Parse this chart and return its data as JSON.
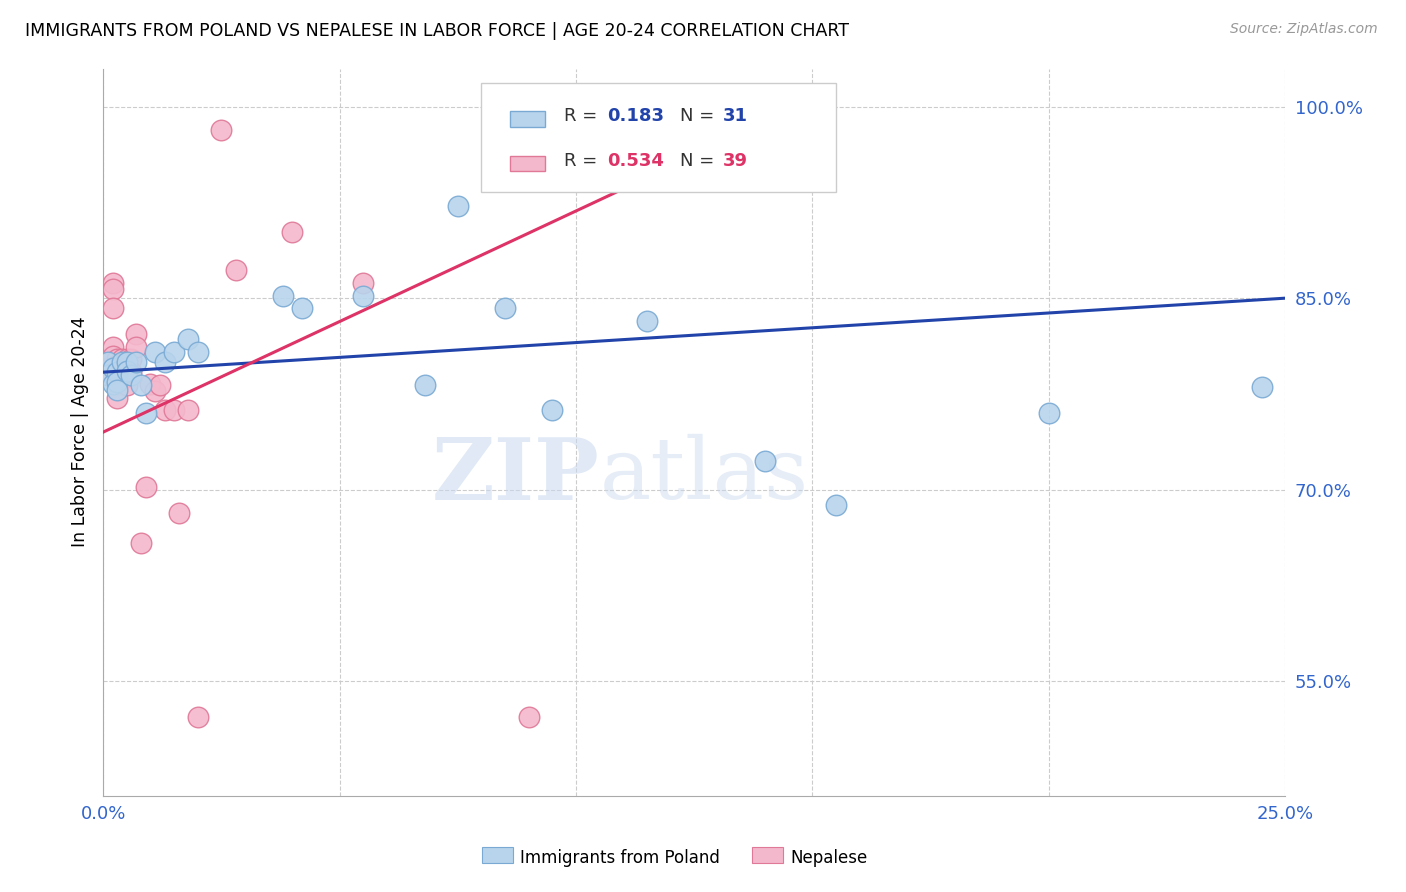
{
  "title": "IMMIGRANTS FROM POLAND VS NEPALESE IN LABOR FORCE | AGE 20-24 CORRELATION CHART",
  "source": "Source: ZipAtlas.com",
  "ylabel": "In Labor Force | Age 20-24",
  "x_min": 0.0,
  "x_max": 0.25,
  "y_min": 0.46,
  "y_max": 1.03,
  "x_ticks": [
    0.0,
    0.05,
    0.1,
    0.15,
    0.2,
    0.25
  ],
  "x_tick_labels": [
    "0.0%",
    "",
    "",
    "",
    "",
    "25.0%"
  ],
  "y_ticks": [
    0.55,
    0.7,
    0.85,
    1.0
  ],
  "y_tick_labels": [
    "55.0%",
    "70.0%",
    "85.0%",
    "100.0%"
  ],
  "poland_color": "#b8d4ec",
  "poland_edge_color": "#7aaad4",
  "nepalese_color": "#f4b8cc",
  "nepalese_edge_color": "#e07898",
  "poland_line_color": "#2244aa",
  "nepalese_line_color": "#dd3366",
  "legend_poland_R": "0.183",
  "legend_poland_N": "31",
  "legend_nepalese_R": "0.534",
  "legend_nepalese_N": "39",
  "legend_label_poland": "Immigrants from Poland",
  "legend_label_nepalese": "Nepalese",
  "watermark_zip": "ZIP",
  "watermark_atlas": "atlas",
  "poland_scatter_x": [
    0.001,
    0.001,
    0.002,
    0.002,
    0.003,
    0.003,
    0.003,
    0.004,
    0.005,
    0.005,
    0.006,
    0.007,
    0.008,
    0.009,
    0.011,
    0.013,
    0.015,
    0.018,
    0.02,
    0.038,
    0.042,
    0.055,
    0.068,
    0.075,
    0.085,
    0.095,
    0.115,
    0.14,
    0.155,
    0.2,
    0.245
  ],
  "poland_scatter_y": [
    0.8,
    0.79,
    0.795,
    0.783,
    0.792,
    0.784,
    0.778,
    0.8,
    0.8,
    0.793,
    0.79,
    0.8,
    0.782,
    0.76,
    0.808,
    0.8,
    0.808,
    0.818,
    0.808,
    0.852,
    0.842,
    0.852,
    0.782,
    0.922,
    0.842,
    0.762,
    0.832,
    0.722,
    0.688,
    0.76,
    0.78
  ],
  "nepalese_scatter_x": [
    0.001,
    0.001,
    0.001,
    0.001,
    0.002,
    0.002,
    0.002,
    0.002,
    0.002,
    0.003,
    0.003,
    0.003,
    0.003,
    0.003,
    0.004,
    0.004,
    0.004,
    0.005,
    0.005,
    0.005,
    0.006,
    0.006,
    0.007,
    0.007,
    0.008,
    0.009,
    0.01,
    0.011,
    0.012,
    0.013,
    0.015,
    0.016,
    0.018,
    0.02,
    0.025,
    0.028,
    0.04,
    0.055,
    0.09
  ],
  "nepalese_scatter_y": [
    0.8,
    0.8,
    0.795,
    0.79,
    0.862,
    0.857,
    0.842,
    0.812,
    0.805,
    0.802,
    0.798,
    0.792,
    0.782,
    0.772,
    0.802,
    0.797,
    0.787,
    0.802,
    0.797,
    0.782,
    0.802,
    0.792,
    0.822,
    0.812,
    0.658,
    0.702,
    0.783,
    0.777,
    0.782,
    0.762,
    0.762,
    0.682,
    0.762,
    0.522,
    0.982,
    0.872,
    0.902,
    0.862,
    0.522
  ],
  "poland_line_x0": 0.0,
  "poland_line_x1": 0.25,
  "poland_line_y0": 0.792,
  "poland_line_y1": 0.85,
  "nepalese_line_x0": 0.0,
  "nepalese_line_x1": 0.15,
  "nepalese_line_y0": 0.745,
  "nepalese_line_y1": 1.005
}
